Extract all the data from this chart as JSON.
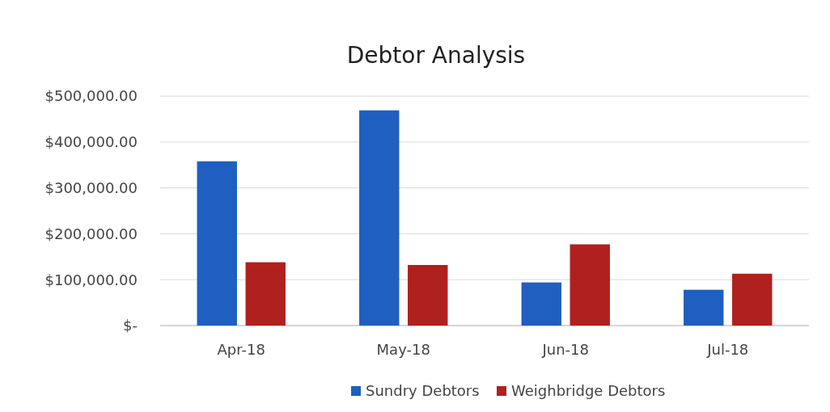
{
  "chart_data": {
    "type": "bar",
    "title": "Debtor Analysis",
    "categories": [
      "Apr-18",
      "May-18",
      "Jun-18",
      "Jul-18"
    ],
    "series": [
      {
        "name": "Sundry Debtors",
        "color": "#1f5fc0",
        "values": [
          358000,
          469000,
          94000,
          78000
        ]
      },
      {
        "name": "Weighbridge Debtors",
        "color": "#b0201e",
        "values": [
          138000,
          132000,
          177000,
          113000
        ]
      }
    ],
    "ylim": [
      0,
      500000
    ],
    "yticks": [
      {
        "value": 0,
        "label": "$-"
      },
      {
        "value": 100000,
        "label": "$100,000.00"
      },
      {
        "value": 200000,
        "label": "$200,000.00"
      },
      {
        "value": 300000,
        "label": "$300,000.00"
      },
      {
        "value": 400000,
        "label": "$400,000.00"
      },
      {
        "value": 500000,
        "label": "$500,000.00"
      }
    ],
    "grid": "y",
    "legend": "bottom"
  }
}
